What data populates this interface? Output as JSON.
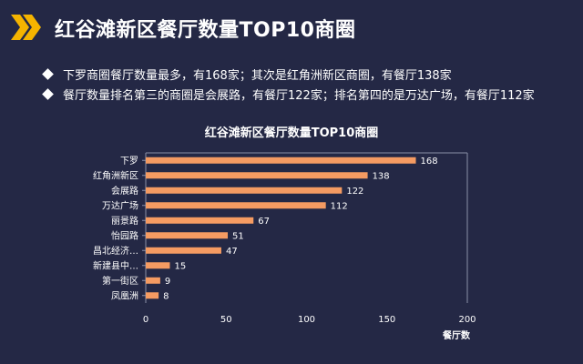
{
  "header": {
    "title": "红谷滩新区餐厅数量TOP10商圈",
    "icon": "double-chevron-icon",
    "accent_color": "#f5b400"
  },
  "bullets": [
    "下罗商圈餐厅数量最多，有168家；其次是红角洲新区商圈，有餐厅138家",
    "餐厅数量排名第三的商圈是会展路，有餐厅122家；排名第四的是万达广场，有餐厅112家"
  ],
  "chart_data": {
    "type": "bar",
    "orientation": "horizontal",
    "title": "红谷滩新区餐厅数量TOP10商圈",
    "categories": [
      "下罗",
      "红角洲新区",
      "会展路",
      "万达广场",
      "丽景路",
      "怡园路",
      "昌北经济…",
      "新建县中…",
      "第一街区",
      "凤凰洲"
    ],
    "values": [
      168,
      138,
      122,
      112,
      67,
      51,
      47,
      15,
      9,
      8
    ],
    "xlabel": "餐厅数",
    "ylabel": "",
    "xlim": [
      0,
      200
    ],
    "xticks": [
      0,
      50,
      100,
      150,
      200
    ],
    "grid": false,
    "legend": "none",
    "bar_color": "#f59b62"
  }
}
